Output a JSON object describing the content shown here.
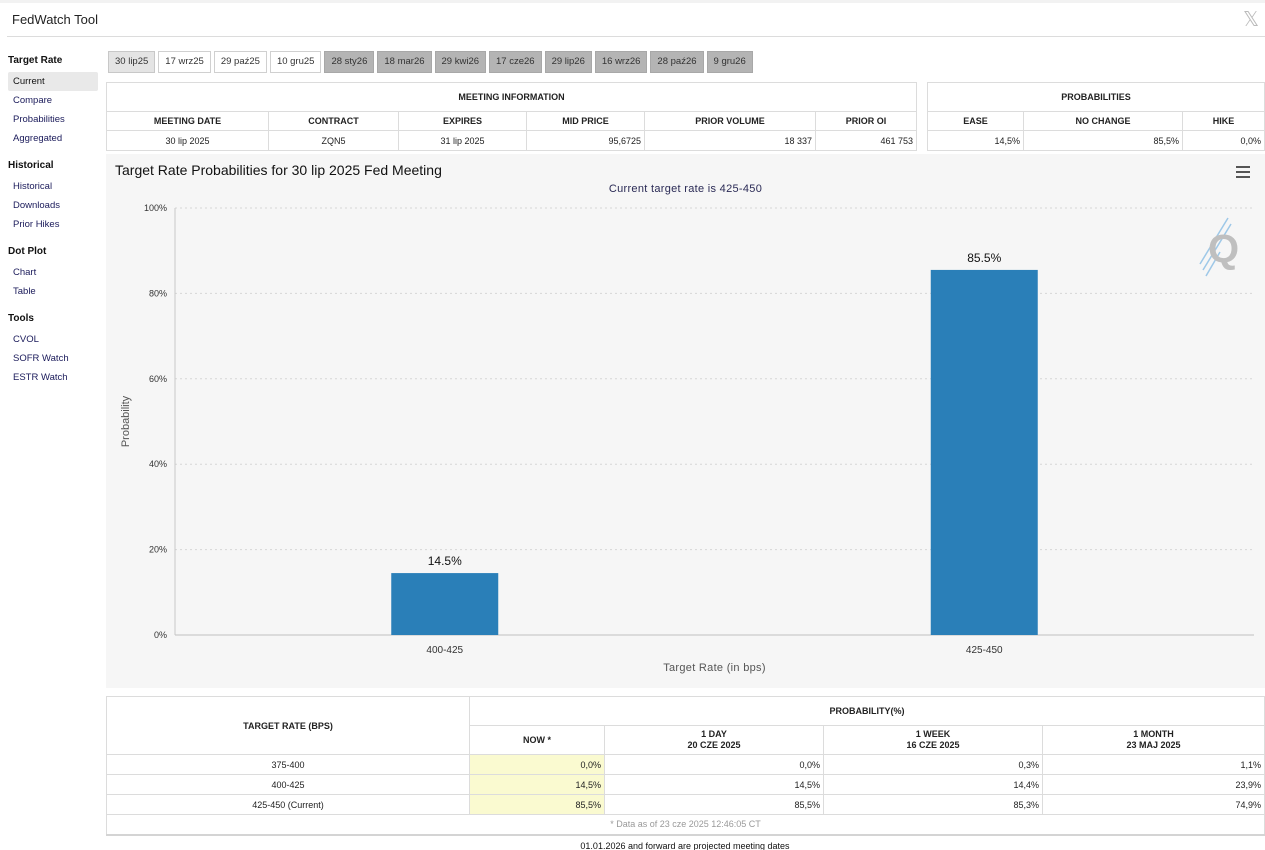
{
  "app": {
    "title": "FedWatch Tool",
    "close_icon": "x-logo-icon"
  },
  "sidebar": {
    "groups": [
      {
        "heading": "Target Rate",
        "items": [
          "Current",
          "Compare",
          "Probabilities",
          "Aggregated"
        ],
        "active": "Current"
      },
      {
        "heading": "Historical",
        "items": [
          "Historical",
          "Downloads",
          "Prior Hikes"
        ]
      },
      {
        "heading": "Dot Plot",
        "items": [
          "Chart",
          "Table"
        ]
      },
      {
        "heading": "Tools",
        "items": [
          "CVOL",
          "SOFR Watch",
          "ESTR Watch"
        ]
      }
    ]
  },
  "tabs": [
    {
      "label": "30 lip25",
      "state": "selected"
    },
    {
      "label": "17 wrz25",
      "state": "normal"
    },
    {
      "label": "29 paź25",
      "state": "normal"
    },
    {
      "label": "10 gru25",
      "state": "normal"
    },
    {
      "label": "28 sty26",
      "state": "projected"
    },
    {
      "label": "18 mar26",
      "state": "projected"
    },
    {
      "label": "29 kwi26",
      "state": "projected"
    },
    {
      "label": "17 cze26",
      "state": "projected"
    },
    {
      "label": "29 lip26",
      "state": "projected"
    },
    {
      "label": "16 wrz26",
      "state": "projected"
    },
    {
      "label": "28 paź26",
      "state": "projected"
    },
    {
      "label": "9 gru26",
      "state": "projected"
    }
  ],
  "meeting_info": {
    "caption": "MEETING INFORMATION",
    "headers": [
      "MEETING DATE",
      "CONTRACT",
      "EXPIRES",
      "MID PRICE",
      "PRIOR VOLUME",
      "PRIOR OI"
    ],
    "row": {
      "meeting_date": "30 lip 2025",
      "contract": "ZQN5",
      "expires": "31 lip 2025",
      "mid_price": "95,6725",
      "prior_volume": "18 337",
      "prior_oi": "461 753"
    }
  },
  "probabilities": {
    "caption": "PROBABILITIES",
    "headers": [
      "EASE",
      "NO CHANGE",
      "HIKE"
    ],
    "row": {
      "ease": "14,5%",
      "no_change": "85,5%",
      "hike": "0,0%"
    }
  },
  "chart": {
    "title": "Target Rate Probabilities for 30 lip 2025 Fed Meeting",
    "subtitle": "Current target rate is 425-450",
    "menu_icon": "hamburger-menu-icon",
    "watermark_icon": "q-logo-icon",
    "bar_color": "#2a7fb8"
  },
  "chart_data": {
    "type": "bar",
    "categories": [
      "400-425",
      "425-450"
    ],
    "values": [
      14.5,
      85.5
    ],
    "data_labels": [
      "14.5%",
      "85.5%"
    ],
    "xlabel": "Target Rate (in bps)",
    "ylabel": "Probability",
    "ylim": [
      0,
      100
    ],
    "yticks": [
      0,
      20,
      40,
      60,
      80,
      100
    ],
    "ytick_labels": [
      "0%",
      "20%",
      "40%",
      "60%",
      "80%",
      "100%"
    ],
    "grid": true
  },
  "bottom_table": {
    "col1_header": "TARGET RATE (BPS)",
    "group_header": "PROBABILITY(%)",
    "sub_headers": [
      {
        "line1": "NOW *",
        "line2": ""
      },
      {
        "line1": "1 DAY",
        "line2": "20 CZE 2025"
      },
      {
        "line1": "1 WEEK",
        "line2": "16 CZE 2025"
      },
      {
        "line1": "1 MONTH",
        "line2": "23 MAJ 2025"
      }
    ],
    "rows": [
      {
        "rate": "375-400",
        "now": "0,0%",
        "day": "0,0%",
        "week": "0,3%",
        "month": "1,1%"
      },
      {
        "rate": "400-425",
        "now": "14,5%",
        "day": "14,5%",
        "week": "14,4%",
        "month": "23,9%"
      },
      {
        "rate": "425-450 (Current)",
        "now": "85,5%",
        "day": "85,5%",
        "week": "85,3%",
        "month": "74,9%"
      }
    ],
    "footnote": "* Data as of 23 cze 2025 12:46:05 CT",
    "projected_note": "01.01.2026 and forward are projected meeting dates"
  }
}
